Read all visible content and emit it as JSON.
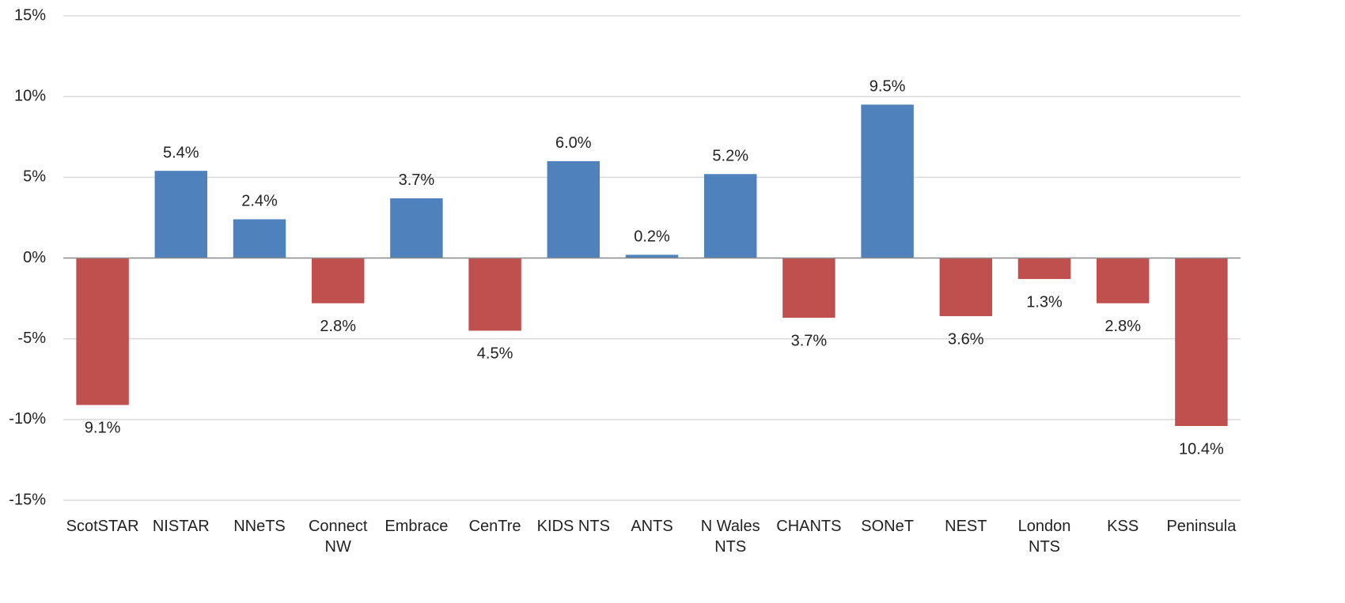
{
  "chart_data": {
    "type": "bar",
    "categories": [
      "ScotSTAR",
      "NISTAR",
      "NNeTS",
      "Connect NW",
      "Embrace",
      "CenTre",
      "KIDS NTS",
      "ANTS",
      "N Wales NTS",
      "CHANTS",
      "SONeT",
      "NEST",
      "London NTS",
      "KSS",
      "Peninsula"
    ],
    "values": [
      -9.1,
      5.4,
      2.4,
      -2.8,
      3.7,
      -4.5,
      6.0,
      0.2,
      5.2,
      -3.7,
      9.5,
      -3.6,
      -1.3,
      -2.8,
      -10.4
    ],
    "value_labels": [
      "9.1%",
      "5.4%",
      "2.4%",
      "2.8%",
      "3.7%",
      "4.5%",
      "6.0%",
      "0.2%",
      "5.2%",
      "3.7%",
      "9.5%",
      "3.6%",
      "1.3%",
      "2.8%",
      "10.4%"
    ],
    "positive_color": "#4f81bd",
    "negative_color": "#c0504d",
    "ylim": [
      -15,
      15
    ],
    "yticks": [
      {
        "value": -15,
        "label": "-15%"
      },
      {
        "value": -10,
        "label": "-10%"
      },
      {
        "value": -5,
        "label": "-5%"
      },
      {
        "value": 0,
        "label": "0%"
      },
      {
        "value": 5,
        "label": "5%"
      },
      {
        "value": 10,
        "label": "10%"
      },
      {
        "value": 15,
        "label": "15%"
      }
    ],
    "grid": true
  }
}
